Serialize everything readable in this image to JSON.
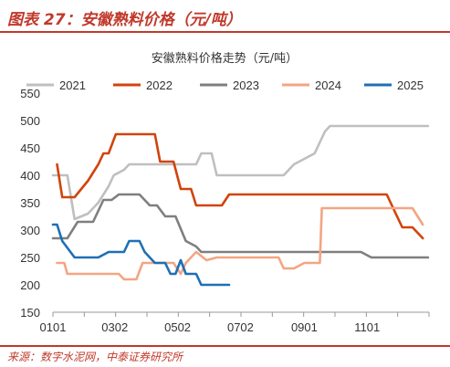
{
  "figure": {
    "caption": "图表 27：安徽熟料价格（元/吨）",
    "source": "来源：数字水泥网，中泰证券研究所"
  },
  "chart_data": {
    "type": "line",
    "title": "安徽熟料价格走势（元/吨）",
    "xlabel": "",
    "ylabel": "",
    "x_ticks": [
      "0101",
      "0302",
      "0502",
      "0702",
      "0901",
      "1101"
    ],
    "x_tick_days": [
      1,
      61,
      122,
      183,
      245,
      306
    ],
    "xlim": [
      1,
      366
    ],
    "ylim": [
      150,
      550
    ],
    "y_ticks": [
      150,
      200,
      250,
      300,
      350,
      400,
      450,
      500,
      550
    ],
    "grid": false,
    "legend": "top",
    "series": [
      {
        "name": "2021",
        "color": "#bfbfbf",
        "points": [
          [
            1,
            400
          ],
          [
            15,
            400
          ],
          [
            22,
            320
          ],
          [
            35,
            330
          ],
          [
            45,
            350
          ],
          [
            55,
            380
          ],
          [
            60,
            400
          ],
          [
            70,
            410
          ],
          [
            75,
            420
          ],
          [
            140,
            420
          ],
          [
            145,
            440
          ],
          [
            155,
            440
          ],
          [
            160,
            400
          ],
          [
            225,
            400
          ],
          [
            235,
            420
          ],
          [
            255,
            440
          ],
          [
            265,
            480
          ],
          [
            270,
            490
          ],
          [
            365,
            490
          ]
        ]
      },
      {
        "name": "2022",
        "color": "#d1440c",
        "points": [
          [
            5,
            420
          ],
          [
            10,
            360
          ],
          [
            22,
            360
          ],
          [
            35,
            390
          ],
          [
            45,
            420
          ],
          [
            50,
            440
          ],
          [
            55,
            440
          ],
          [
            62,
            475
          ],
          [
            100,
            475
          ],
          [
            105,
            425
          ],
          [
            118,
            425
          ],
          [
            125,
            375
          ],
          [
            135,
            375
          ],
          [
            140,
            345
          ],
          [
            165,
            345
          ],
          [
            172,
            365
          ],
          [
            325,
            365
          ],
          [
            335,
            325
          ],
          [
            340,
            305
          ],
          [
            350,
            305
          ],
          [
            360,
            285
          ]
        ]
      },
      {
        "name": "2023",
        "color": "#7f7f7f",
        "points": [
          [
            1,
            285
          ],
          [
            15,
            285
          ],
          [
            25,
            315
          ],
          [
            40,
            315
          ],
          [
            50,
            355
          ],
          [
            58,
            355
          ],
          [
            65,
            365
          ],
          [
            85,
            365
          ],
          [
            95,
            345
          ],
          [
            102,
            345
          ],
          [
            110,
            325
          ],
          [
            120,
            325
          ],
          [
            130,
            280
          ],
          [
            140,
            270
          ],
          [
            145,
            260
          ],
          [
            250,
            260
          ],
          [
            265,
            260
          ],
          [
            300,
            260
          ],
          [
            310,
            250
          ],
          [
            365,
            250
          ]
        ]
      },
      {
        "name": "2024",
        "color": "#f4a582",
        "points": [
          [
            5,
            240
          ],
          [
            12,
            240
          ],
          [
            15,
            220
          ],
          [
            65,
            220
          ],
          [
            70,
            210
          ],
          [
            82,
            210
          ],
          [
            88,
            240
          ],
          [
            118,
            240
          ],
          [
            125,
            220
          ],
          [
            130,
            240
          ],
          [
            140,
            260
          ],
          [
            150,
            245
          ],
          [
            160,
            250
          ],
          [
            175,
            250
          ],
          [
            220,
            250
          ],
          [
            225,
            230
          ],
          [
            235,
            230
          ],
          [
            245,
            240
          ],
          [
            260,
            240
          ],
          [
            262,
            340
          ],
          [
            330,
            340
          ],
          [
            350,
            340
          ],
          [
            360,
            310
          ]
        ]
      },
      {
        "name": "2025",
        "color": "#1f6fb5",
        "points": [
          [
            1,
            310
          ],
          [
            5,
            310
          ],
          [
            10,
            280
          ],
          [
            18,
            260
          ],
          [
            22,
            250
          ],
          [
            45,
            250
          ],
          [
            55,
            260
          ],
          [
            70,
            260
          ],
          [
            75,
            280
          ],
          [
            85,
            280
          ],
          [
            90,
            260
          ],
          [
            95,
            250
          ],
          [
            100,
            240
          ],
          [
            110,
            240
          ],
          [
            115,
            220
          ],
          [
            120,
            220
          ],
          [
            125,
            245
          ],
          [
            130,
            220
          ],
          [
            140,
            220
          ],
          [
            145,
            200
          ],
          [
            172,
            200
          ]
        ]
      }
    ]
  }
}
